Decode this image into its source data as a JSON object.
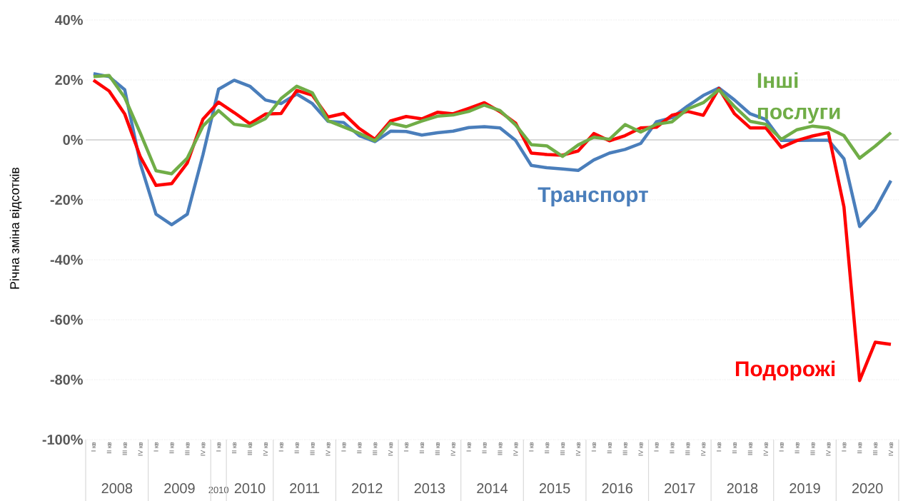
{
  "chart_data": {
    "type": "line",
    "ylabel": "Річна зміна відсотків",
    "categories": [
      "I кв",
      "II кв",
      "III кв",
      "IV кв",
      "I кв",
      "II кв",
      "III кв",
      "IV кв",
      "I кв",
      "II кв",
      "III кв",
      "IV кв",
      "I кв",
      "II кв",
      "III кв",
      "IV кв",
      "I кв",
      "II кв",
      "III кв",
      "IV кв",
      "I кв",
      "II кв",
      "III кв",
      "IV кв",
      "I кв",
      "II кв",
      "III кв",
      "IV кв",
      "I кв",
      "II кв",
      "III кв",
      "IV кв",
      "I кв",
      "II кв",
      "III кв",
      "IV кв",
      "I кв",
      "II кв",
      "III кв",
      "IV кв",
      "I кв",
      "II кв",
      "III кв",
      "IV кв",
      "I кв",
      "II кв",
      "III кв",
      "IV кв",
      "I кв",
      "II кв",
      "III кв",
      "IV кв"
    ],
    "series": [
      {
        "name": "Транспорт",
        "color": "#4a7ebb",
        "values": [
          22.1,
          21.1,
          16.7,
          -8,
          -24.8,
          -28.3,
          -24.8,
          -5,
          16.9,
          19.9,
          17.9,
          13.3,
          12.1,
          15.3,
          12.1,
          6.2,
          5.8,
          1.4,
          -0.6,
          2.9,
          2.8,
          1.6,
          2.4,
          2.9,
          4.1,
          4.4,
          4.0,
          -0.2,
          -8.5,
          -9.3,
          -9.7,
          -10.2,
          -6.7,
          -4.4,
          -3.2,
          -1.2,
          6.0,
          7.4,
          11.3,
          14.8,
          17.3,
          13.3,
          8.7,
          6.8,
          -0.2,
          -0.2,
          -0.1,
          -0.1,
          -6.3,
          -28.9,
          -23.2,
          -13.6
        ]
      },
      {
        "name": "Подорожі",
        "color": "#ff0000",
        "values": [
          19.9,
          16.3,
          8.6,
          -5.7,
          -15.2,
          -14.6,
          -7.7,
          6.9,
          12.6,
          9.1,
          5.4,
          8.6,
          8.8,
          16.5,
          14.9,
          7.6,
          8.8,
          3.8,
          0.2,
          6.3,
          7.8,
          7.0,
          9.2,
          8.7,
          10.5,
          12.4,
          9.4,
          5.6,
          -4.4,
          -4.9,
          -5.1,
          -3.7,
          2.1,
          -0.3,
          1.4,
          4.0,
          4.2,
          8.2,
          9.5,
          8.2,
          17.1,
          8.7,
          4.0,
          4.0,
          -2.5,
          -0.2,
          1.3,
          2.4,
          -22.4,
          -80.3,
          -67.5,
          -68.2
        ]
      },
      {
        "name": "Інші послуги",
        "color": "#70ad47",
        "values": [
          21.1,
          21.5,
          14.1,
          2.2,
          -10.3,
          -11.3,
          -6.1,
          4.6,
          9.8,
          5.2,
          4.5,
          7.1,
          13.8,
          17.9,
          15.7,
          6.4,
          4.3,
          2.2,
          -0.3,
          5.6,
          4.4,
          6.3,
          7.9,
          8.3,
          9.5,
          11.6,
          9.8,
          5.0,
          -1.6,
          -2.0,
          -5.5,
          -1.7,
          0.9,
          0.2,
          5.1,
          2.6,
          5.2,
          6.0,
          10.3,
          12.4,
          16.7,
          11.1,
          6.2,
          5.2,
          0.2,
          3.4,
          4.6,
          4.0,
          1.4,
          -6.1,
          -2.1,
          2.4
        ]
      }
    ],
    "ylim": [
      -100,
      40
    ],
    "yticks": [
      {
        "value": -100,
        "label": "-100%"
      },
      {
        "value": -80,
        "label": "-80%"
      },
      {
        "value": -60,
        "label": "-60%"
      },
      {
        "value": -40,
        "label": "-40%"
      },
      {
        "value": -20,
        "label": "-20%"
      },
      {
        "value": 0,
        "label": "0%"
      },
      {
        "value": 20,
        "label": "20%"
      },
      {
        "value": 40,
        "label": "40%"
      }
    ],
    "grid": "y",
    "ref_lines": [
      {
        "axis": "y",
        "value": 0,
        "color": "#d9d9d9"
      }
    ],
    "annotations": [
      "2008",
      "2009",
      "2010",
      "2010",
      "2011",
      "2012",
      "2013",
      "2014",
      "2015",
      "2016",
      "2017",
      "2018",
      "2019",
      "2020"
    ]
  }
}
